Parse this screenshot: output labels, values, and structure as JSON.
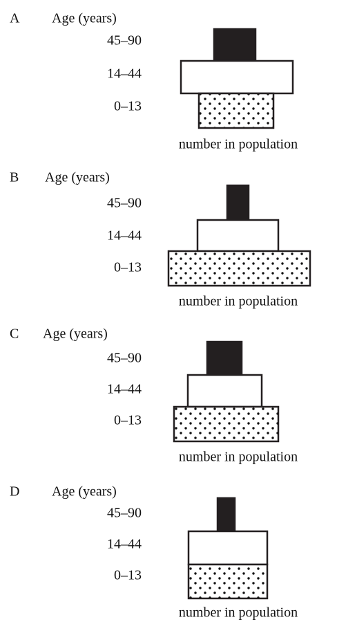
{
  "panels": [
    {
      "letter": "A",
      "axis_label": "Age (years)",
      "age_groups": [
        "45–90",
        "14–44",
        "0–13"
      ],
      "x_label": "number in population"
    },
    {
      "letter": "B",
      "axis_label": "Age (years)",
      "age_groups": [
        "45–90",
        "14–44",
        "0–13"
      ],
      "x_label": "number in population"
    },
    {
      "letter": "C",
      "axis_label": "Age (years)",
      "age_groups": [
        "45–90",
        "14–44",
        "0–13"
      ],
      "x_label": "number in population"
    },
    {
      "letter": "D",
      "axis_label": "Age (years)",
      "age_groups": [
        "45–90",
        "14–44",
        "0–13"
      ],
      "x_label": "number in population"
    }
  ]
}
